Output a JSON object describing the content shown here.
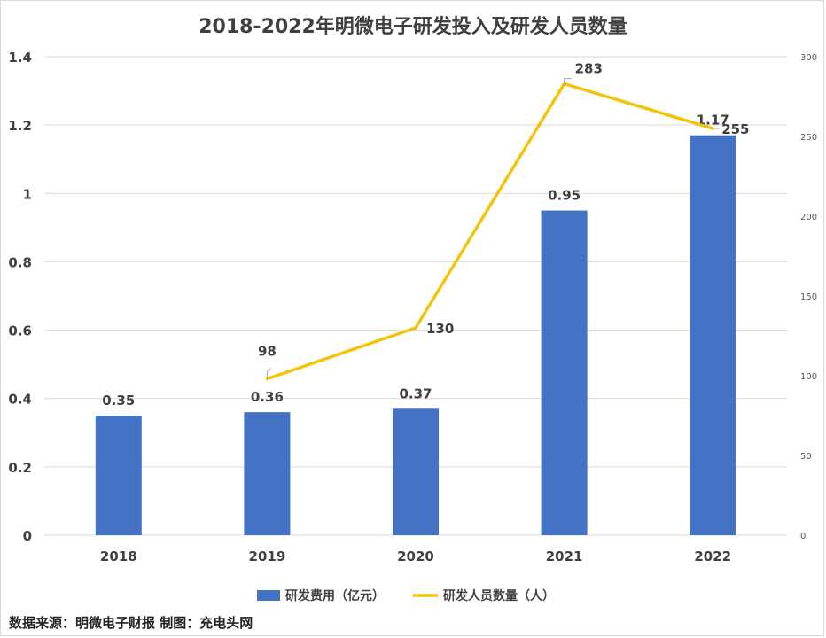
{
  "chart_data": {
    "type": "bar",
    "title": "2018-2022年明微电子研发投入及研发人员数量",
    "categories": [
      "2018",
      "2019",
      "2020",
      "2021",
      "2022"
    ],
    "series": [
      {
        "name": "研发费用（亿元）",
        "type": "bar",
        "axis": "left",
        "values": [
          0.35,
          0.36,
          0.37,
          0.95,
          1.17
        ],
        "labels": [
          "0.35",
          "0.36",
          "0.37",
          "0.95",
          "1.17"
        ]
      },
      {
        "name": "研发人员数量（人）",
        "type": "line",
        "axis": "right",
        "values": [
          null,
          98,
          130,
          283,
          255
        ],
        "labels": [
          "",
          "98",
          "130",
          "283",
          "255"
        ]
      }
    ],
    "y_left": {
      "ylim": [
        0,
        1.4
      ],
      "ticks": [
        "0",
        "0.2",
        "0.4",
        "0.6",
        "0.8",
        "1",
        "1.2",
        "1.4"
      ]
    },
    "y_right": {
      "ylim": [
        0,
        300
      ],
      "ticks": [
        "0",
        "50",
        "100",
        "150",
        "200",
        "250",
        "300"
      ]
    },
    "grid": true,
    "legend_position": "bottom",
    "colors": {
      "bar": "#4472c4",
      "line": "#f2c40c",
      "grid": "#d9d9d9",
      "text": "#404040"
    }
  },
  "source_note": "数据来源：明微电子财报  制图：充电头网"
}
